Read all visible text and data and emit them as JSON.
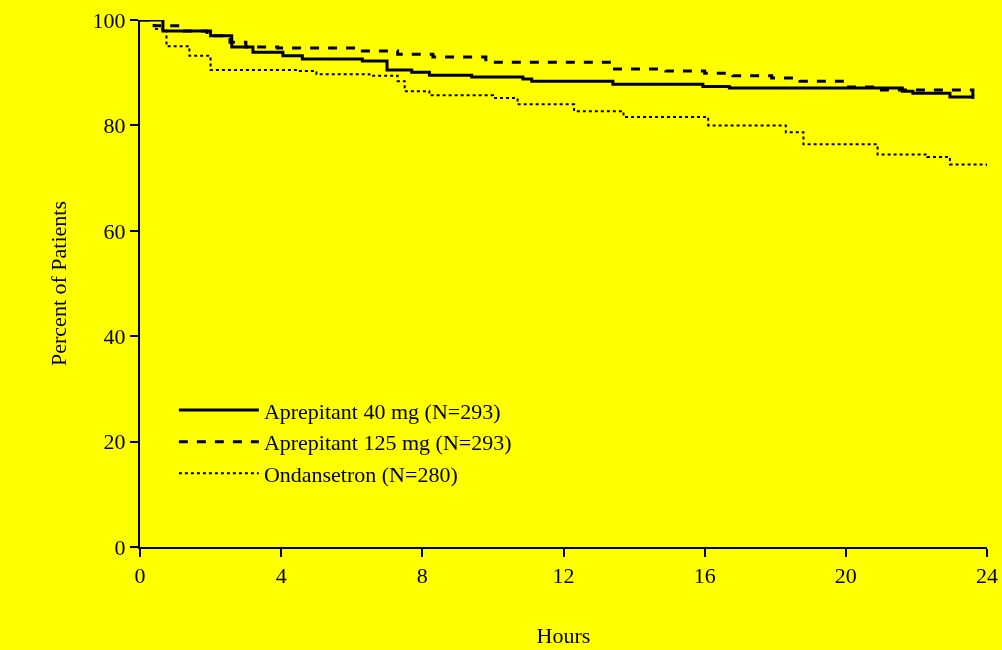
{
  "chart_data": {
    "type": "step",
    "xlabel": "Hours",
    "ylabel": "Percent of Patients",
    "xlim": [
      0,
      24
    ],
    "xticks": [
      0,
      4,
      8,
      12,
      16,
      20,
      24
    ],
    "ylim": [
      0,
      100
    ],
    "yticks": [
      0,
      20,
      40,
      60,
      80,
      100
    ],
    "grid": false,
    "legend": "bottom left",
    "marker": "none",
    "series": [
      {
        "name": "Aprepitant 40 mg (N=293)",
        "color": "#000000",
        "line_style": "solid",
        "x": [
          0,
          0.65,
          2,
          2.6,
          3.2,
          4.05,
          4.6,
          6.3,
          7.0,
          7.7,
          8.2,
          9.4,
          10.85,
          11.1,
          13.4,
          15.95,
          16.7,
          21.6,
          21.9,
          22.95,
          23.6
        ],
        "values": [
          100,
          97.9,
          97,
          94.9,
          93.9,
          93.2,
          92.6,
          92.2,
          90.5,
          90.1,
          89.5,
          89.2,
          88.8,
          88.4,
          87.8,
          87.4,
          87.1,
          86.5,
          86.1,
          85.4,
          85.0
        ]
      },
      {
        "name": "Aprepitant 125 mg (N=293)",
        "color": "#000000",
        "line_style": "dashed",
        "x": [
          0,
          0.4,
          1.2,
          1.9,
          2.55,
          3.0,
          3.9,
          6.15,
          7.3,
          8.3,
          9.8,
          13.4,
          14.9,
          16.0,
          16.8,
          17.9,
          18.7,
          20.0,
          20.8,
          23.6
        ],
        "values": [
          100,
          98.9,
          97.9,
          97,
          95.8,
          94.9,
          94.7,
          94.1,
          93.5,
          93,
          92,
          90.7,
          90.3,
          89.9,
          89.4,
          89,
          88.4,
          87.3,
          86.7,
          84.8
        ]
      },
      {
        "name": "Ondansetron (N=280)",
        "color": "#000000",
        "line_style": "dotted",
        "x": [
          0,
          0.4,
          0.75,
          1.4,
          2.0,
          4.45,
          5.0,
          6.5,
          7.3,
          7.5,
          8.2,
          10.0,
          10.7,
          12.3,
          13.7,
          16.1,
          18.3,
          18.8,
          20.9,
          22.3,
          22.95,
          24.0
        ],
        "values": [
          100,
          98.3,
          95,
          93.2,
          90.5,
          90.3,
          89.7,
          89.4,
          88.4,
          86.5,
          85.7,
          85.2,
          84.0,
          82.7,
          81.6,
          80.0,
          78.7,
          76.4,
          74.5,
          74.0,
          72.6,
          71.9
        ]
      }
    ]
  }
}
